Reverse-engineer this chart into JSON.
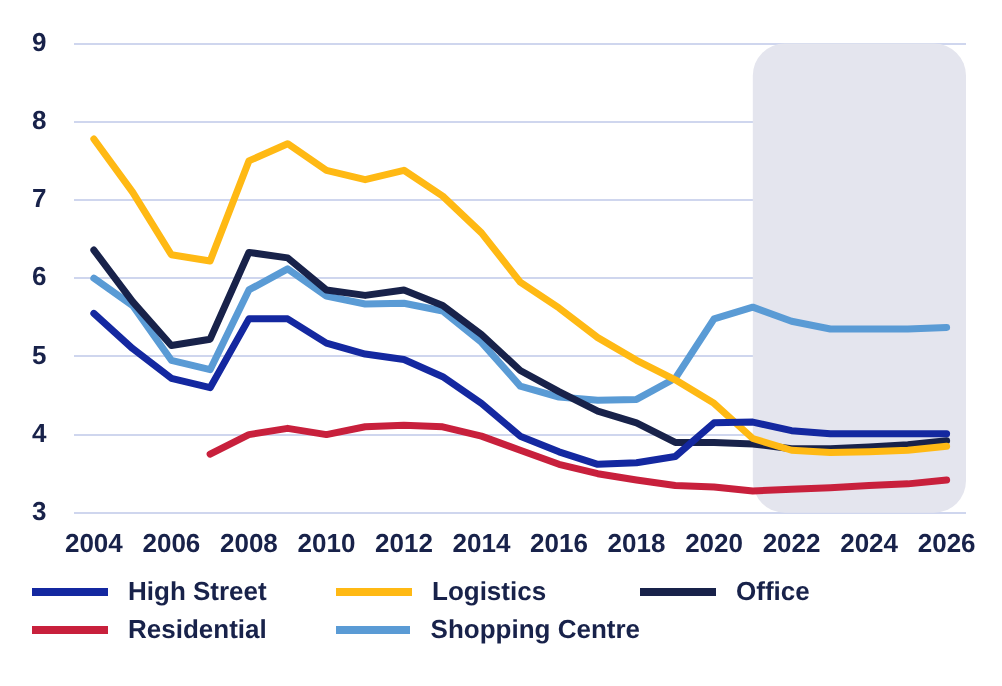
{
  "chart_data": {
    "type": "line",
    "x": [
      2004,
      2005,
      2006,
      2007,
      2008,
      2009,
      2010,
      2011,
      2012,
      2013,
      2014,
      2015,
      2016,
      2017,
      2018,
      2019,
      2020,
      2021,
      2022,
      2023,
      2024,
      2025,
      2026
    ],
    "xlim": [
      2003.5,
      2026.5
    ],
    "xticks": [
      2004,
      2006,
      2008,
      2010,
      2012,
      2014,
      2016,
      2018,
      2020,
      2022,
      2024,
      2026
    ],
    "ylim": [
      3,
      9
    ],
    "yticks": [
      3,
      4,
      5,
      6,
      7,
      8,
      9
    ],
    "grid": "y",
    "legend": "bottom",
    "marker": "none",
    "line_style": "solid",
    "bands": [
      {
        "axis": "x",
        "from": 2021,
        "to": 2026.5,
        "color": "#e4e5ee"
      }
    ],
    "series": [
      {
        "name": "High Street",
        "color": "#1428a0",
        "values": [
          5.55,
          5.1,
          4.72,
          4.6,
          5.48,
          5.48,
          5.17,
          5.03,
          4.96,
          4.74,
          4.4,
          3.98,
          3.78,
          3.62,
          3.64,
          3.72,
          4.15,
          4.16,
          4.05,
          4.01,
          4.01,
          4.01,
          4.01
        ]
      },
      {
        "name": "Logistics",
        "color": "#ffb914",
        "values": [
          7.78,
          7.1,
          6.3,
          6.22,
          7.5,
          7.72,
          7.38,
          7.26,
          7.38,
          7.05,
          6.58,
          5.95,
          5.62,
          5.24,
          4.95,
          4.7,
          4.4,
          3.95,
          3.8,
          3.77,
          3.78,
          3.8,
          3.85
        ]
      },
      {
        "name": "Office",
        "color": "#18224a",
        "values": [
          6.36,
          5.7,
          5.14,
          5.22,
          6.33,
          6.26,
          5.85,
          5.78,
          5.85,
          5.65,
          5.28,
          4.82,
          4.55,
          4.3,
          4.15,
          3.9,
          3.9,
          3.88,
          3.82,
          3.82,
          3.84,
          3.87,
          3.92
        ]
      },
      {
        "name": "Residential",
        "color": "#c8203c",
        "values": [
          null,
          null,
          null,
          3.75,
          4.0,
          4.08,
          4.0,
          4.1,
          4.12,
          4.1,
          3.98,
          3.8,
          3.62,
          3.5,
          3.42,
          3.35,
          3.33,
          3.28,
          3.3,
          3.32,
          3.35,
          3.37,
          3.42
        ]
      },
      {
        "name": "Shopping Centre",
        "color": "#5a9bd5",
        "values": [
          6.0,
          5.65,
          4.95,
          4.83,
          5.85,
          6.12,
          5.77,
          5.67,
          5.68,
          5.58,
          5.18,
          4.62,
          4.48,
          4.44,
          4.45,
          4.72,
          5.48,
          5.63,
          5.45,
          5.35,
          5.35,
          5.35,
          5.37
        ]
      }
    ]
  }
}
